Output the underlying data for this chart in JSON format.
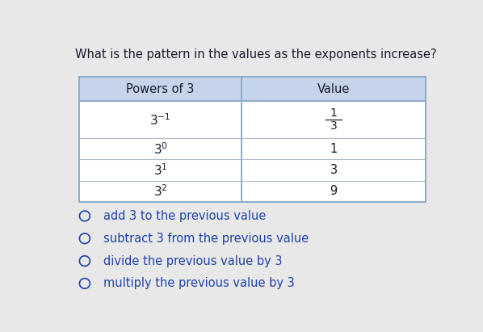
{
  "title": "What is the pattern in the values as the exponents increase?",
  "title_fontsize": 10.5,
  "col_headers": [
    "Powers of 3",
    "Value"
  ],
  "header_bg": "#c5d4e8",
  "table_bg": "#ffffff",
  "row_data": [
    {
      "power_exp": "-1",
      "value_num": "1",
      "value_den": "3",
      "is_fraction": true
    },
    {
      "power_exp": "0",
      "value_num": "1",
      "value_den": null,
      "is_fraction": false
    },
    {
      "power_exp": "1",
      "value_num": "3",
      "value_den": null,
      "is_fraction": false
    },
    {
      "power_exp": "2",
      "value_num": "9",
      "value_den": null,
      "is_fraction": false
    }
  ],
  "options": [
    "add 3 to the previous value",
    "subtract 3 from the previous value",
    "divide the previous value by 3",
    "multiply the previous value by 3"
  ],
  "option_fontsize": 10.5,
  "bg_color": "#e8e8e8",
  "border_color": "#8eaac8",
  "inner_line_color": "#b0b8c8",
  "text_color": "#1a1a2e",
  "option_text_color": "#2244aa"
}
